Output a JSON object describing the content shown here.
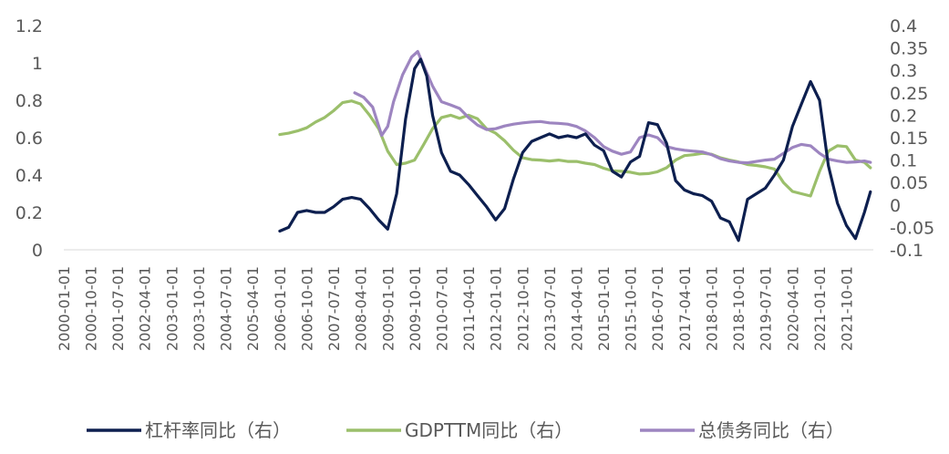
{
  "chart_data": {
    "type": "line",
    "title": "",
    "xlabel": "",
    "ylabel_left": "",
    "ylabel_right": "",
    "grid": false,
    "legend_position": "bottom",
    "x_ticks": [
      "2000-01-01",
      "2000-10-01",
      "2001-07-01",
      "2002-04-01",
      "2003-01-01",
      "2003-10-01",
      "2004-07-01",
      "2005-04-01",
      "2006-01-01",
      "2006-10-01",
      "2007-07-01",
      "2008-04-01",
      "2009-01-01",
      "2009-10-01",
      "2010-07-01",
      "2011-04-01",
      "2012-01-01",
      "2012-10-01",
      "2013-07-01",
      "2014-04-01",
      "2015-01-01",
      "2015-10-01",
      "2016-07-01",
      "2017-04-01",
      "2018-01-01",
      "2018-10-01",
      "2019-07-01",
      "2020-04-01",
      "2021-01-01",
      "2021-10-01"
    ],
    "x_range": [
      "2000-01-01",
      "2022-07-01"
    ],
    "y_left": {
      "min": 0,
      "max": 1.2,
      "ticks": [
        "0",
        "0.2",
        "0.4",
        "0.6",
        "0.8",
        "1",
        "1.2"
      ]
    },
    "y_right": {
      "min": -0.1,
      "max": 0.4,
      "ticks": [
        "-0.1",
        "-0.05",
        "0",
        "0.05",
        "0.1",
        "0.15",
        "0.2",
        "0.25",
        "0.3",
        "0.35",
        "0.4"
      ]
    },
    "series": [
      {
        "name": "杠杆率同比（右）",
        "axis": "left",
        "color": "#0d1f4f",
        "points": [
          [
            "2006-01-01",
            0.1
          ],
          [
            "2006-04-01",
            0.12
          ],
          [
            "2006-07-01",
            0.2
          ],
          [
            "2006-10-01",
            0.21
          ],
          [
            "2007-01-01",
            0.2
          ],
          [
            "2007-04-01",
            0.2
          ],
          [
            "2007-07-01",
            0.23
          ],
          [
            "2007-10-01",
            0.27
          ],
          [
            "2008-01-01",
            0.28
          ],
          [
            "2008-04-01",
            0.27
          ],
          [
            "2008-07-01",
            0.22
          ],
          [
            "2008-10-01",
            0.16
          ],
          [
            "2009-01-01",
            0.11
          ],
          [
            "2009-04-01",
            0.3
          ],
          [
            "2009-07-01",
            0.7
          ],
          [
            "2009-10-01",
            0.97
          ],
          [
            "2009-12-01",
            1.02
          ],
          [
            "2010-02-01",
            0.93
          ],
          [
            "2010-04-01",
            0.72
          ],
          [
            "2010-07-01",
            0.52
          ],
          [
            "2010-10-01",
            0.42
          ],
          [
            "2011-01-01",
            0.4
          ],
          [
            "2011-04-01",
            0.35
          ],
          [
            "2011-07-01",
            0.29
          ],
          [
            "2011-10-01",
            0.23
          ],
          [
            "2012-01-01",
            0.16
          ],
          [
            "2012-04-01",
            0.22
          ],
          [
            "2012-07-01",
            0.38
          ],
          [
            "2012-10-01",
            0.52
          ],
          [
            "2013-01-01",
            0.58
          ],
          [
            "2013-04-01",
            0.6
          ],
          [
            "2013-07-01",
            0.62
          ],
          [
            "2013-10-01",
            0.6
          ],
          [
            "2014-01-01",
            0.61
          ],
          [
            "2014-04-01",
            0.6
          ],
          [
            "2014-07-01",
            0.62
          ],
          [
            "2014-10-01",
            0.56
          ],
          [
            "2015-01-01",
            0.53
          ],
          [
            "2015-04-01",
            0.42
          ],
          [
            "2015-07-01",
            0.39
          ],
          [
            "2015-10-01",
            0.47
          ],
          [
            "2016-01-01",
            0.5
          ],
          [
            "2016-04-01",
            0.68
          ],
          [
            "2016-07-01",
            0.67
          ],
          [
            "2016-10-01",
            0.57
          ],
          [
            "2017-01-01",
            0.37
          ],
          [
            "2017-04-01",
            0.32
          ],
          [
            "2017-07-01",
            0.3
          ],
          [
            "2017-10-01",
            0.29
          ],
          [
            "2018-01-01",
            0.26
          ],
          [
            "2018-04-01",
            0.17
          ],
          [
            "2018-07-01",
            0.15
          ],
          [
            "2018-10-01",
            0.05
          ],
          [
            "2019-01-01",
            0.27
          ],
          [
            "2019-04-01",
            0.3
          ],
          [
            "2019-07-01",
            0.33
          ],
          [
            "2019-10-01",
            0.4
          ],
          [
            "2020-01-01",
            0.48
          ],
          [
            "2020-04-01",
            0.66
          ],
          [
            "2020-07-01",
            0.78
          ],
          [
            "2020-10-01",
            0.9
          ],
          [
            "2021-01-01",
            0.8
          ],
          [
            "2021-04-01",
            0.45
          ],
          [
            "2021-07-01",
            0.25
          ],
          [
            "2021-10-01",
            0.13
          ],
          [
            "2022-01-01",
            0.06
          ],
          [
            "2022-04-01",
            0.2
          ],
          [
            "2022-06-01",
            0.31
          ]
        ]
      },
      {
        "name": "GDPTTM同比（右）",
        "axis": "right",
        "color": "#9bbf6b",
        "points": [
          [
            "2006-01-01",
            0.157
          ],
          [
            "2006-04-01",
            0.16
          ],
          [
            "2006-07-01",
            0.165
          ],
          [
            "2006-10-01",
            0.172
          ],
          [
            "2007-01-01",
            0.185
          ],
          [
            "2007-04-01",
            0.195
          ],
          [
            "2007-07-01",
            0.21
          ],
          [
            "2007-10-01",
            0.228
          ],
          [
            "2008-01-01",
            0.232
          ],
          [
            "2008-04-01",
            0.225
          ],
          [
            "2008-07-01",
            0.2
          ],
          [
            "2008-10-01",
            0.17
          ],
          [
            "2009-01-01",
            0.12
          ],
          [
            "2009-04-01",
            0.09
          ],
          [
            "2009-07-01",
            0.093
          ],
          [
            "2009-10-01",
            0.1
          ],
          [
            "2010-01-01",
            0.135
          ],
          [
            "2010-04-01",
            0.17
          ],
          [
            "2010-07-01",
            0.195
          ],
          [
            "2010-10-01",
            0.2
          ],
          [
            "2011-01-01",
            0.193
          ],
          [
            "2011-04-01",
            0.2
          ],
          [
            "2011-07-01",
            0.192
          ],
          [
            "2011-10-01",
            0.17
          ],
          [
            "2012-01-01",
            0.16
          ],
          [
            "2012-04-01",
            0.143
          ],
          [
            "2012-07-01",
            0.122
          ],
          [
            "2012-10-01",
            0.105
          ],
          [
            "2013-01-01",
            0.101
          ],
          [
            "2013-04-01",
            0.1
          ],
          [
            "2013-07-01",
            0.098
          ],
          [
            "2013-10-01",
            0.1
          ],
          [
            "2014-01-01",
            0.097
          ],
          [
            "2014-04-01",
            0.097
          ],
          [
            "2014-07-01",
            0.093
          ],
          [
            "2014-10-01",
            0.09
          ],
          [
            "2015-01-01",
            0.082
          ],
          [
            "2015-04-01",
            0.076
          ],
          [
            "2015-07-01",
            0.075
          ],
          [
            "2015-10-01",
            0.073
          ],
          [
            "2016-01-01",
            0.069
          ],
          [
            "2016-04-01",
            0.07
          ],
          [
            "2016-07-01",
            0.074
          ],
          [
            "2016-10-01",
            0.083
          ],
          [
            "2017-01-01",
            0.1
          ],
          [
            "2017-04-01",
            0.11
          ],
          [
            "2017-07-01",
            0.112
          ],
          [
            "2017-10-01",
            0.115
          ],
          [
            "2018-01-01",
            0.113
          ],
          [
            "2018-04-01",
            0.105
          ],
          [
            "2018-07-01",
            0.1
          ],
          [
            "2018-10-01",
            0.096
          ],
          [
            "2019-01-01",
            0.09
          ],
          [
            "2019-04-01",
            0.088
          ],
          [
            "2019-07-01",
            0.085
          ],
          [
            "2019-10-01",
            0.08
          ],
          [
            "2020-01-01",
            0.05
          ],
          [
            "2020-04-01",
            0.03
          ],
          [
            "2020-07-01",
            0.025
          ],
          [
            "2020-10-01",
            0.02
          ],
          [
            "2021-01-01",
            0.075
          ],
          [
            "2021-04-01",
            0.12
          ],
          [
            "2021-07-01",
            0.132
          ],
          [
            "2021-10-01",
            0.13
          ],
          [
            "2022-01-01",
            0.1
          ],
          [
            "2022-04-01",
            0.095
          ],
          [
            "2022-06-01",
            0.083
          ]
        ]
      },
      {
        "name": "总债务同比（右）",
        "axis": "right",
        "color": "#9d85c0",
        "points": [
          [
            "2008-02-01",
            0.25
          ],
          [
            "2008-05-01",
            0.24
          ],
          [
            "2008-08-01",
            0.218
          ],
          [
            "2008-11-01",
            0.155
          ],
          [
            "2009-01-01",
            0.175
          ],
          [
            "2009-03-01",
            0.23
          ],
          [
            "2009-06-01",
            0.29
          ],
          [
            "2009-09-01",
            0.33
          ],
          [
            "2009-11-01",
            0.342
          ],
          [
            "2010-01-01",
            0.31
          ],
          [
            "2010-04-01",
            0.265
          ],
          [
            "2010-07-01",
            0.23
          ],
          [
            "2010-10-01",
            0.223
          ],
          [
            "2011-01-01",
            0.215
          ],
          [
            "2011-04-01",
            0.195
          ],
          [
            "2011-07-01",
            0.178
          ],
          [
            "2011-10-01",
            0.168
          ],
          [
            "2012-01-01",
            0.17
          ],
          [
            "2012-04-01",
            0.176
          ],
          [
            "2012-07-01",
            0.18
          ],
          [
            "2012-10-01",
            0.183
          ],
          [
            "2013-01-01",
            0.185
          ],
          [
            "2013-04-01",
            0.186
          ],
          [
            "2013-07-01",
            0.183
          ],
          [
            "2013-10-01",
            0.182
          ],
          [
            "2014-01-01",
            0.18
          ],
          [
            "2014-04-01",
            0.175
          ],
          [
            "2014-07-01",
            0.165
          ],
          [
            "2014-10-01",
            0.15
          ],
          [
            "2015-01-01",
            0.13
          ],
          [
            "2015-04-01",
            0.12
          ],
          [
            "2015-07-01",
            0.113
          ],
          [
            "2015-10-01",
            0.118
          ],
          [
            "2016-01-01",
            0.15
          ],
          [
            "2016-04-01",
            0.156
          ],
          [
            "2016-07-01",
            0.15
          ],
          [
            "2016-10-01",
            0.13
          ],
          [
            "2017-01-01",
            0.125
          ],
          [
            "2017-04-01",
            0.122
          ],
          [
            "2017-07-01",
            0.12
          ],
          [
            "2017-10-01",
            0.118
          ],
          [
            "2018-01-01",
            0.112
          ],
          [
            "2018-04-01",
            0.103
          ],
          [
            "2018-07-01",
            0.098
          ],
          [
            "2018-10-01",
            0.095
          ],
          [
            "2019-01-01",
            0.094
          ],
          [
            "2019-04-01",
            0.097
          ],
          [
            "2019-07-01",
            0.1
          ],
          [
            "2019-10-01",
            0.102
          ],
          [
            "2020-01-01",
            0.115
          ],
          [
            "2020-04-01",
            0.128
          ],
          [
            "2020-07-01",
            0.135
          ],
          [
            "2020-10-01",
            0.132
          ],
          [
            "2021-01-01",
            0.115
          ],
          [
            "2021-04-01",
            0.102
          ],
          [
            "2021-07-01",
            0.098
          ],
          [
            "2021-10-01",
            0.095
          ],
          [
            "2022-01-01",
            0.096
          ],
          [
            "2022-04-01",
            0.098
          ],
          [
            "2022-06-01",
            0.095
          ]
        ]
      }
    ]
  }
}
